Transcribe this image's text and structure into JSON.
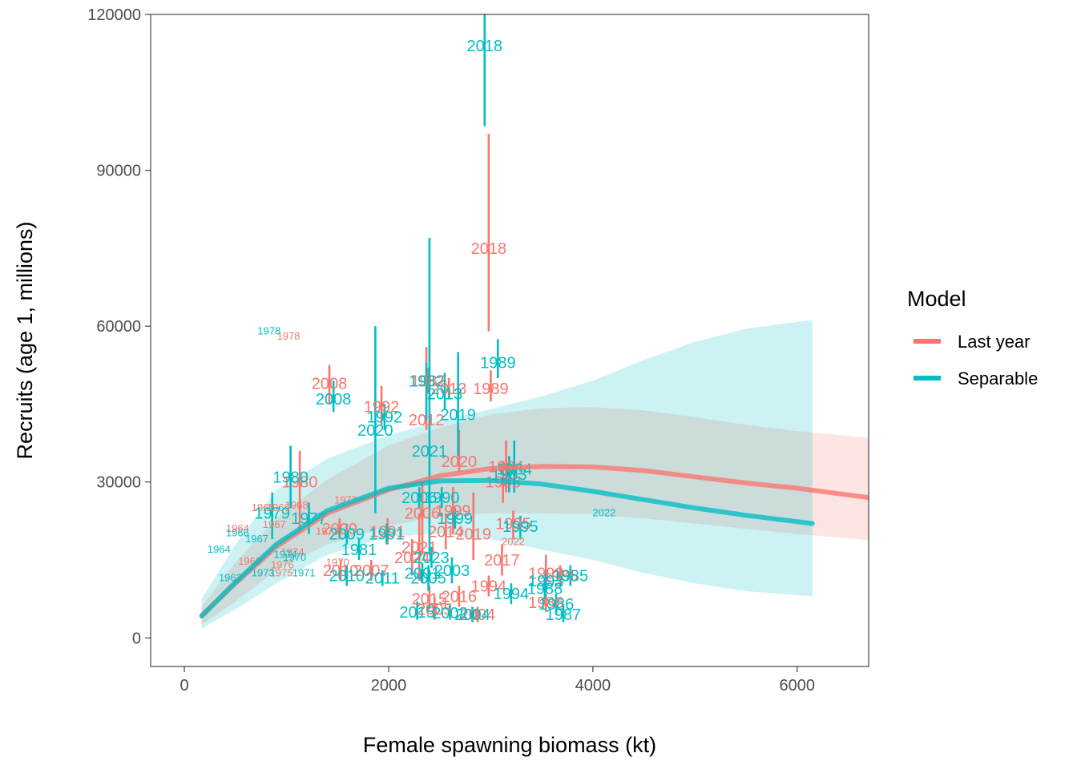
{
  "chart_data": {
    "type": "scatter",
    "title": "",
    "xlabel": "Female spawning biomass (kt)",
    "ylabel": "Recruits (age 1, millions)",
    "xlim": [
      -330,
      6700
    ],
    "ylim": [
      -5500,
      120000
    ],
    "xticks": [
      0,
      2000,
      4000,
      6000
    ],
    "yticks": [
      0,
      30000,
      60000,
      90000,
      120000
    ],
    "grid": false,
    "legend": {
      "title": "Model",
      "placement": "right"
    },
    "colors": {
      "Last year": "#F8766D",
      "Separable": "#00BFC4"
    },
    "series": [
      {
        "name": "Last year",
        "curve": [
          [
            170,
            4300
          ],
          [
            500,
            10500
          ],
          [
            900,
            17500
          ],
          [
            1400,
            24000
          ],
          [
            2000,
            28500
          ],
          [
            2500,
            31200
          ],
          [
            3000,
            32600
          ],
          [
            3500,
            33000
          ],
          [
            4000,
            32900
          ],
          [
            4500,
            32200
          ],
          [
            5000,
            31000
          ],
          [
            5500,
            29800
          ],
          [
            6000,
            28800
          ],
          [
            6700,
            27000
          ]
        ],
        "band_upper": [
          [
            170,
            6000
          ],
          [
            500,
            14500
          ],
          [
            900,
            23000
          ],
          [
            1400,
            30500
          ],
          [
            2000,
            37000
          ],
          [
            2500,
            40500
          ],
          [
            3000,
            43000
          ],
          [
            3500,
            44200
          ],
          [
            4000,
            44400
          ],
          [
            4500,
            43800
          ],
          [
            5000,
            42500
          ],
          [
            5500,
            41000
          ],
          [
            6000,
            39800
          ],
          [
            6700,
            38500
          ]
        ],
        "band_lower": [
          [
            170,
            2500
          ],
          [
            500,
            7000
          ],
          [
            900,
            13000
          ],
          [
            1400,
            18000
          ],
          [
            2000,
            21500
          ],
          [
            2500,
            23500
          ],
          [
            3000,
            24000
          ],
          [
            3500,
            24000
          ],
          [
            4000,
            23800
          ],
          [
            4500,
            23000
          ],
          [
            5000,
            22000
          ],
          [
            5500,
            21000
          ],
          [
            6000,
            20000
          ],
          [
            6700,
            18800
          ]
        ],
        "points": [
          {
            "label": "2018",
            "x": 2980,
            "y": 75000,
            "lo": 59000,
            "hi": 97000
          },
          {
            "label": "1989",
            "x": 3000,
            "y": 48000,
            "lo": 45500,
            "hi": 51500
          },
          {
            "label": "2008",
            "x": 1420,
            "y": 49000,
            "lo": 45000,
            "hi": 52500
          },
          {
            "label": "1992",
            "x": 1930,
            "y": 44500,
            "lo": 41000,
            "hi": 48500
          },
          {
            "label": "2012",
            "x": 2370,
            "y": 42000,
            "lo": 40000,
            "hi": 56000
          },
          {
            "label": "2013",
            "x": 2590,
            "y": 48000,
            "lo": 46000,
            "hi": 50000
          },
          {
            "label": "1982",
            "x": 2390,
            "y": 49500,
            "lo": 47000,
            "hi": 52000
          },
          {
            "label": "2020",
            "x": 2690,
            "y": 34000,
            "lo": 32000,
            "hi": 40000
          },
          {
            "label": "1980",
            "x": 1130,
            "y": 30000,
            "lo": 20000,
            "hi": 36000
          },
          {
            "label": "1984",
            "x": 3150,
            "y": 33000,
            "lo": 28000,
            "hi": 38000
          },
          {
            "label": "1983",
            "x": 3120,
            "y": 30000,
            "lo": 26000,
            "hi": 34000
          },
          {
            "label": "2006",
            "x": 2330,
            "y": 24000,
            "lo": 16000,
            "hi": 30000
          },
          {
            "label": "1999",
            "x": 2630,
            "y": 24500,
            "lo": 20000,
            "hi": 29000
          },
          {
            "label": "2009",
            "x": 1520,
            "y": 21000,
            "lo": 19000,
            "hi": 23000
          },
          {
            "label": "1991",
            "x": 1990,
            "y": 20500,
            "lo": 18000,
            "hi": 23000
          },
          {
            "label": "2014",
            "x": 2560,
            "y": 20500,
            "lo": 17000,
            "hi": 24000
          },
          {
            "label": "2019",
            "x": 2830,
            "y": 20000,
            "lo": 15000,
            "hi": 28000
          },
          {
            "label": "1995",
            "x": 3220,
            "y": 22000,
            "lo": 19000,
            "hi": 24500
          },
          {
            "label": "2021",
            "x": 2300,
            "y": 17500,
            "lo": 11000,
            "hi": 24000
          },
          {
            "label": "2022",
            "x": 3220,
            "y": 18500,
            "small": true
          },
          {
            "label": "2024",
            "x": 2230,
            "y": 15500,
            "lo": 12000,
            "hi": 19000
          },
          {
            "label": "2017",
            "x": 3110,
            "y": 15000,
            "lo": 12000,
            "hi": 18000
          },
          {
            "label": "2010",
            "x": 1530,
            "y": 13000,
            "lo": 11000,
            "hi": 15000
          },
          {
            "label": "2007",
            "x": 1830,
            "y": 13000,
            "lo": 11000,
            "hi": 15000
          },
          {
            "label": "1993",
            "x": 3540,
            "y": 12500,
            "lo": 10000,
            "hi": 16000
          },
          {
            "label": "1985",
            "x": 3680,
            "y": 12000,
            "lo": 10000,
            "hi": 14000
          },
          {
            "label": "1994",
            "x": 2980,
            "y": 10000,
            "lo": 8000,
            "hi": 12000
          },
          {
            "label": "2015",
            "x": 2400,
            "y": 7500,
            "lo": 5500,
            "hi": 10000
          },
          {
            "label": "2016",
            "x": 2690,
            "y": 8000,
            "lo": 6000,
            "hi": 10000
          },
          {
            "label": "1986",
            "x": 3540,
            "y": 6800,
            "lo": 5000,
            "hi": 8500
          },
          {
            "label": "2005",
            "x": 2450,
            "y": 5500,
            "lo": 3500,
            "hi": 8000
          },
          {
            "label": "2004",
            "x": 2870,
            "y": 4500,
            "lo": 3000,
            "hi": 6000
          },
          {
            "label": "1965",
            "x": 770,
            "y": 25000,
            "small": true
          },
          {
            "label": "1968",
            "x": 1100,
            "y": 25500,
            "small": true
          },
          {
            "label": "1966",
            "x": 920,
            "y": 25000,
            "small": true
          },
          {
            "label": "1973",
            "x": 1580,
            "y": 26500,
            "small": true
          },
          {
            "label": "1967",
            "x": 880,
            "y": 21800,
            "small": true
          },
          {
            "label": "1964",
            "x": 520,
            "y": 21000,
            "small": true
          },
          {
            "label": "1972",
            "x": 1400,
            "y": 20500,
            "small": true
          },
          {
            "label": "1974",
            "x": 1060,
            "y": 16500,
            "small": true
          },
          {
            "label": "1969",
            "x": 640,
            "y": 14700,
            "small": true
          },
          {
            "label": "1976",
            "x": 960,
            "y": 14000,
            "small": true
          },
          {
            "label": "1975",
            "x": 950,
            "y": 12500,
            "small": true
          },
          {
            "label": "1970",
            "x": 1500,
            "y": 14500,
            "small": true
          },
          {
            "label": "1978",
            "x": 1020,
            "y": 58000,
            "small": true
          }
        ]
      },
      {
        "name": "Separable",
        "curve": [
          [
            170,
            4200
          ],
          [
            500,
            10700
          ],
          [
            900,
            18000
          ],
          [
            1400,
            24500
          ],
          [
            2000,
            28800
          ],
          [
            2500,
            30200
          ],
          [
            3000,
            30300
          ],
          [
            3500,
            29600
          ],
          [
            4000,
            28200
          ],
          [
            4500,
            26600
          ],
          [
            5000,
            25000
          ],
          [
            5500,
            23600
          ],
          [
            6150,
            22000
          ]
        ],
        "band_upper": [
          [
            170,
            7500
          ],
          [
            500,
            18000
          ],
          [
            900,
            28500
          ],
          [
            1400,
            34500
          ],
          [
            2000,
            39000
          ],
          [
            2500,
            41800
          ],
          [
            3000,
            44000
          ],
          [
            3500,
            46500
          ],
          [
            4000,
            49500
          ],
          [
            4500,
            53500
          ],
          [
            5000,
            57000
          ],
          [
            5500,
            59500
          ],
          [
            6150,
            61200
          ]
        ],
        "band_lower": [
          [
            170,
            1800
          ],
          [
            500,
            5500
          ],
          [
            900,
            10500
          ],
          [
            1400,
            16000
          ],
          [
            2000,
            19500
          ],
          [
            2500,
            20000
          ],
          [
            3000,
            19000
          ],
          [
            3500,
            17000
          ],
          [
            4000,
            15000
          ],
          [
            4500,
            12500
          ],
          [
            5000,
            10500
          ],
          [
            5500,
            9000
          ],
          [
            6150,
            8000
          ]
        ],
        "points": [
          {
            "label": "2018",
            "x": 2940,
            "y": 114000,
            "lo": 98500,
            "hi": 120000
          },
          {
            "label": "1989",
            "x": 3070,
            "y": 53000,
            "lo": 50000,
            "hi": 57500
          },
          {
            "label": "2008",
            "x": 1460,
            "y": 46000,
            "lo": 43500,
            "hi": 49500
          },
          {
            "label": "1982",
            "x": 2370,
            "y": 49500,
            "lo": 42000,
            "hi": 53000
          },
          {
            "label": "2013",
            "x": 2550,
            "y": 47000,
            "lo": 44000,
            "hi": 51000
          },
          {
            "label": "2019",
            "x": 2680,
            "y": 43000,
            "lo": 35000,
            "hi": 55000
          },
          {
            "label": "1992",
            "x": 1960,
            "y": 42500,
            "lo": 40000,
            "hi": 45000
          },
          {
            "label": "2020",
            "x": 1870,
            "y": 40000,
            "lo": 24000,
            "hi": 60000
          },
          {
            "label": "2021",
            "x": 2400,
            "y": 36000,
            "lo": 16000,
            "hi": 77000
          },
          {
            "label": "1980",
            "x": 1040,
            "y": 31000,
            "lo": 25000,
            "hi": 37000
          },
          {
            "label": "1984",
            "x": 3230,
            "y": 32500,
            "lo": 28000,
            "hi": 38000
          },
          {
            "label": "1983",
            "x": 3180,
            "y": 31500,
            "lo": 28000,
            "hi": 35000
          },
          {
            "label": "2006",
            "x": 2300,
            "y": 27000,
            "lo": 25000,
            "hi": 29000
          },
          {
            "label": "1990",
            "x": 2520,
            "y": 27000,
            "lo": 25000,
            "hi": 29000
          },
          {
            "label": "1999",
            "x": 2650,
            "y": 23000,
            "lo": 21000,
            "hi": 25000
          },
          {
            "label": "1995",
            "x": 3290,
            "y": 21500,
            "lo": 19000,
            "hi": 23500
          },
          {
            "label": "2022",
            "x": 4110,
            "y": 24000,
            "small": true
          },
          {
            "label": "2009",
            "x": 1590,
            "y": 20000,
            "lo": 18000,
            "hi": 22000
          },
          {
            "label": "1991",
            "x": 1980,
            "y": 20000,
            "lo": 18000,
            "hi": 22000
          },
          {
            "label": "1981",
            "x": 1710,
            "y": 17000,
            "lo": 15000,
            "hi": 19000
          },
          {
            "label": "1979",
            "x": 860,
            "y": 24000,
            "lo": 19000,
            "hi": 28000
          },
          {
            "label": "1977",
            "x": 1220,
            "y": 23000,
            "lo": 20000,
            "hi": 26000
          },
          {
            "label": "2003",
            "x": 2620,
            "y": 13000,
            "lo": 10500,
            "hi": 15500
          },
          {
            "label": "2023",
            "x": 2420,
            "y": 15500,
            "lo": 13500,
            "hi": 17500
          },
          {
            "label": "2001",
            "x": 2330,
            "y": 12500,
            "lo": 10500,
            "hi": 14500
          },
          {
            "label": "2011",
            "x": 1940,
            "y": 11500,
            "lo": 10000,
            "hi": 13000
          },
          {
            "label": "2010",
            "x": 1590,
            "y": 12000,
            "lo": 10000,
            "hi": 14000
          },
          {
            "label": "1993",
            "x": 3540,
            "y": 11000,
            "lo": 9000,
            "hi": 13000
          },
          {
            "label": "1985",
            "x": 3780,
            "y": 12000,
            "lo": 10000,
            "hi": 14000
          },
          {
            "label": "1994",
            "x": 3200,
            "y": 8500,
            "lo": 6500,
            "hi": 10500
          },
          {
            "label": "1988",
            "x": 3530,
            "y": 9500,
            "lo": 7500,
            "hi": 11500
          },
          {
            "label": "1986",
            "x": 3640,
            "y": 6500,
            "lo": 4500,
            "hi": 8500
          },
          {
            "label": "1987",
            "x": 3710,
            "y": 4500,
            "lo": 3000,
            "hi": 6500
          },
          {
            "label": "2005",
            "x": 2390,
            "y": 11500,
            "lo": 9000,
            "hi": 14000
          },
          {
            "label": "2015",
            "x": 2280,
            "y": 5000,
            "lo": 3500,
            "hi": 7000
          },
          {
            "label": "2002",
            "x": 2600,
            "y": 4800,
            "lo": 3500,
            "hi": 6500
          },
          {
            "label": "2004",
            "x": 2820,
            "y": 4500,
            "lo": 3000,
            "hi": 6000
          },
          {
            "label": "1964",
            "x": 340,
            "y": 17000,
            "small": true
          },
          {
            "label": "1966",
            "x": 520,
            "y": 20200,
            "small": true
          },
          {
            "label": "1967",
            "x": 710,
            "y": 19000,
            "small": true
          },
          {
            "label": "1963",
            "x": 450,
            "y": 11500,
            "small": true
          },
          {
            "label": "1973",
            "x": 770,
            "y": 12500,
            "small": true
          },
          {
            "label": "1970",
            "x": 1080,
            "y": 15500,
            "small": true
          },
          {
            "label": "1971",
            "x": 1170,
            "y": 12500,
            "small": true
          },
          {
            "label": "1974",
            "x": 990,
            "y": 16000,
            "small": true
          },
          {
            "label": "1978",
            "x": 830,
            "y": 59000,
            "small": true
          }
        ]
      }
    ]
  }
}
